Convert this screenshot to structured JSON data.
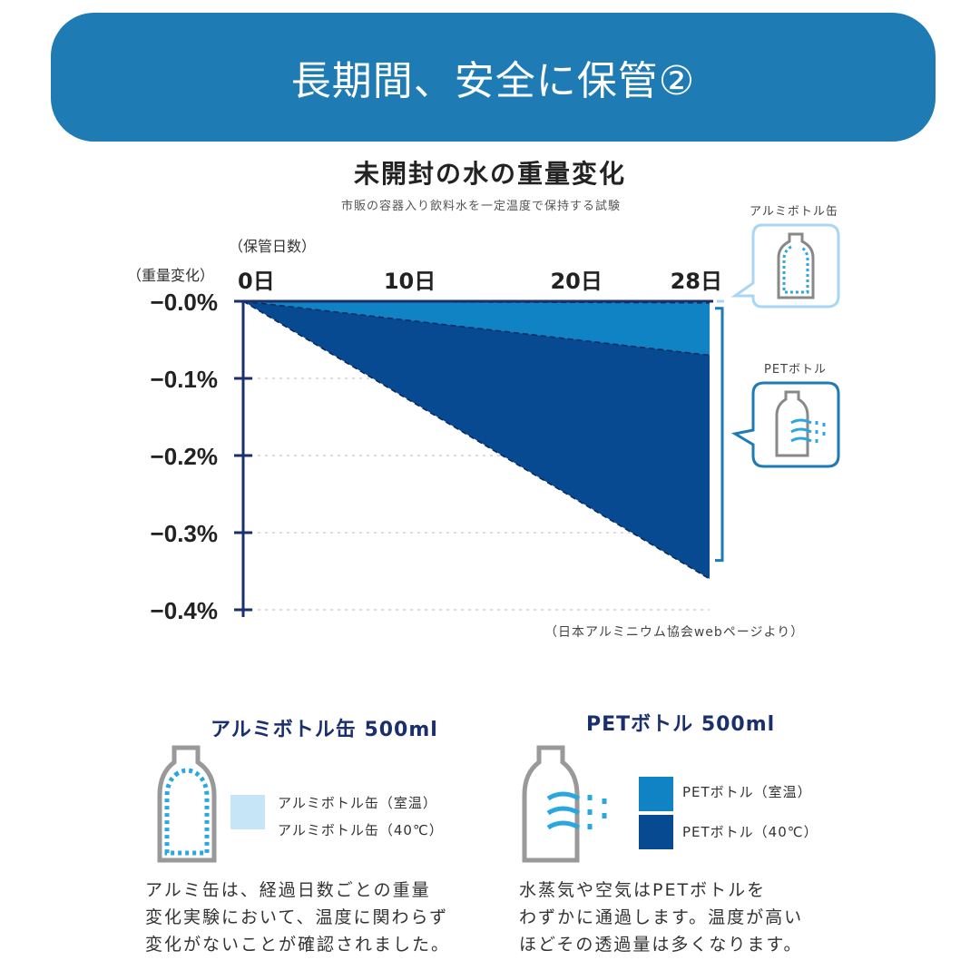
{
  "banner": {
    "title": "長期間、安全に保管②"
  },
  "chart_data": {
    "type": "area",
    "title": "未開封の水の重量変化",
    "subtitle": "市販の容器入り飲料水を一定温度で保持する試験",
    "xlabel": "（保管日数）",
    "ylabel": "（重量変化）",
    "x_ticks": [
      "0日",
      "10日",
      "20日",
      "28日"
    ],
    "x_tick_values": [
      0,
      10,
      20,
      28
    ],
    "y_ticks": [
      "−0.0%",
      "−0.1%",
      "−0.2%",
      "−0.3%",
      "−0.4%"
    ],
    "y_tick_values": [
      0,
      -0.1,
      -0.2,
      -0.3,
      -0.4
    ],
    "xlim": [
      0,
      28
    ],
    "ylim": [
      -0.4,
      0
    ],
    "x": [
      0,
      28
    ],
    "series": [
      {
        "name": "アルミボトル缶（室温）",
        "values": [
          0,
          0
        ],
        "color": "#cde8f8"
      },
      {
        "name": "アルミボトル缶（40℃）",
        "values": [
          0,
          -0.002
        ],
        "color": "#a9d6f2"
      },
      {
        "name": "PETボトル（室温）",
        "values": [
          0,
          -0.07
        ],
        "color": "#0f83c4"
      },
      {
        "name": "PETボトル（40℃）",
        "values": [
          0,
          -0.36
        ],
        "color": "#074a92"
      }
    ],
    "source": "（日本アルミニウム協会webページより）",
    "grid": true
  },
  "callouts": {
    "aluminum_label": "アルミボトル缶",
    "pet_label": "PETボトル"
  },
  "legend": {
    "aluminum": {
      "title": "アルミボトル缶 500ml",
      "items": [
        "アルミボトル缶（室温）",
        "アルミボトル缶（40℃）"
      ],
      "description": [
        "アルミ缶は、経過日数ごとの重量",
        "変化実験において、温度に関わらず",
        "変化がないことが確認されました。"
      ]
    },
    "pet": {
      "title": "PETボトル 500ml",
      "items": [
        "PETボトル（室温）",
        "PETボトル（40℃）"
      ],
      "description": [
        "水蒸気や空気はPETボトルを",
        "わずかに通過します。温度が高い",
        "ほどその透過量は多くなります。"
      ]
    }
  },
  "colors": {
    "banner": "#1e7bb4",
    "axis": "#1a2f6e",
    "alu_swatch": "#c6e6f8",
    "pet_room": "#0f83c4",
    "pet_40": "#074a92",
    "bracket": "#1e7bb4"
  }
}
